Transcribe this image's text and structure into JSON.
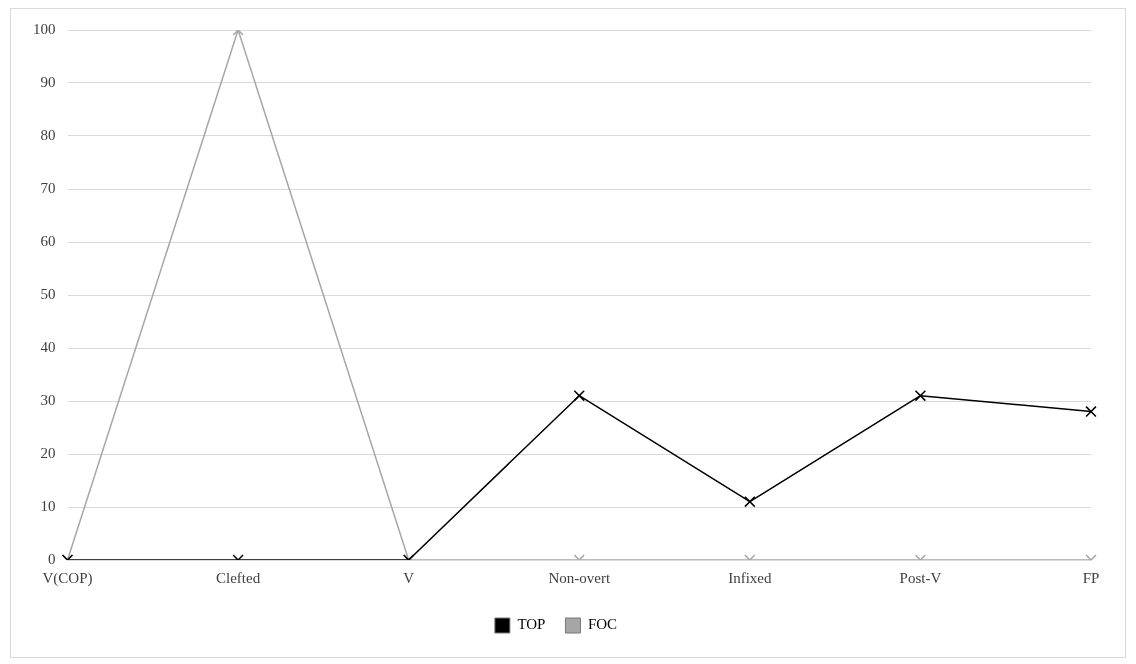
{
  "chart_data": {
    "type": "line",
    "categories": [
      "V(COP)",
      "Clefted",
      "V",
      "Non-overt",
      "Infixed",
      "Post-V",
      "FP"
    ],
    "series": [
      {
        "name": "TOP",
        "color": "#000000",
        "values": [
          0,
          0,
          0,
          31,
          11,
          31,
          28
        ]
      },
      {
        "name": "FOC",
        "color": "#a6a6a6",
        "values": [
          0,
          100,
          0,
          0,
          0,
          0,
          0
        ]
      }
    ],
    "ylim": [
      0,
      100
    ],
    "yticks": [
      0,
      10,
      20,
      30,
      40,
      50,
      60,
      70,
      80,
      90,
      100
    ],
    "grid": "y",
    "legend": "bottom",
    "marker": "cross",
    "line_style": "solid"
  }
}
